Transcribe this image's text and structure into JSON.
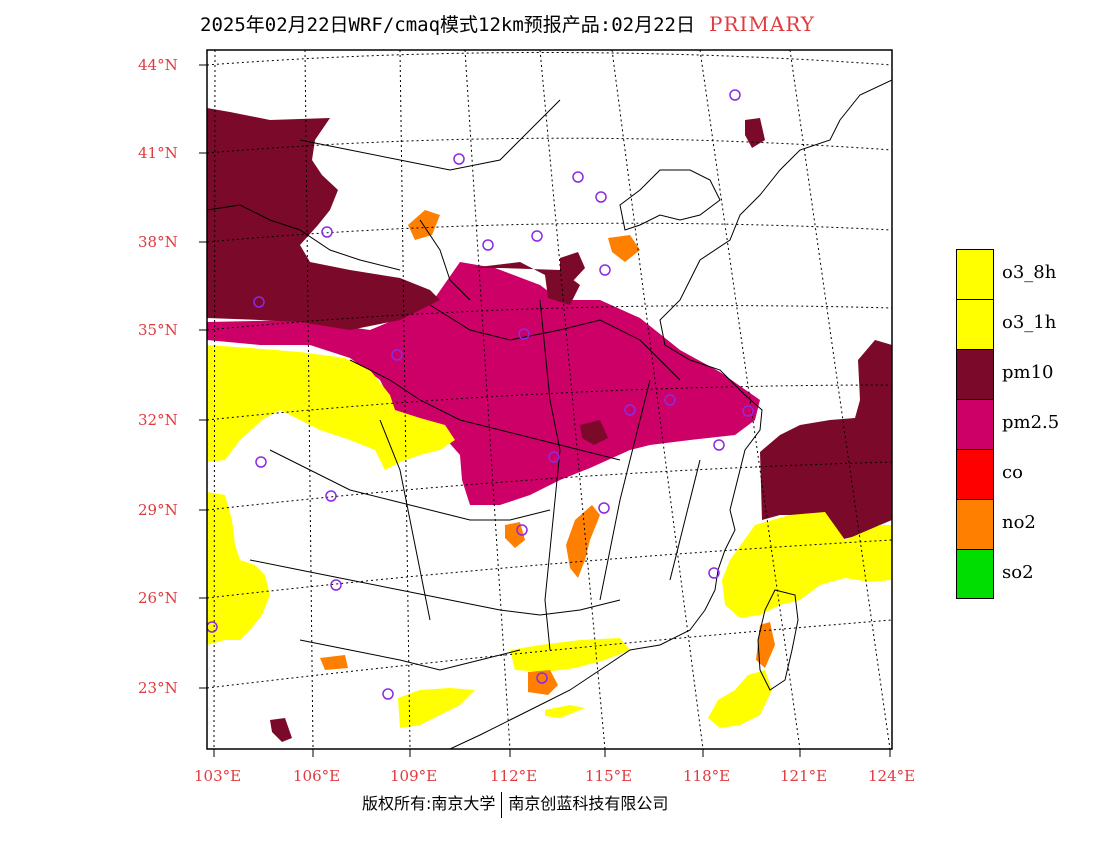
{
  "title": {
    "main": "2025年02月22日WRF/cmaq模式12km预报产品:02月22日",
    "tag": "PRIMARY"
  },
  "colors": {
    "label_red": "#e0393e",
    "o3_8h": "#ffff00",
    "o3_1h": "#ffff00",
    "pm10": "#7b0a2a",
    "pm25": "#cc0066",
    "co": "#ff0000",
    "no2": "#ff7f00",
    "so2": "#00dd00",
    "site_marker": "#8a2be2"
  },
  "axes": {
    "lat_labels": [
      "44°N",
      "41°N",
      "38°N",
      "35°N",
      "32°N",
      "29°N",
      "26°N",
      "23°N"
    ],
    "lon_labels": [
      "103°E",
      "106°E",
      "109°E",
      "112°E",
      "115°E",
      "118°E",
      "121°E",
      "124°E"
    ]
  },
  "legend": {
    "items": [
      {
        "label": "o3_8h",
        "color": "#ffff00"
      },
      {
        "label": "o3_1h",
        "color": "#ffff00"
      },
      {
        "label": "pm10",
        "color": "#7b0a2a"
      },
      {
        "label": "pm2.5",
        "color": "#cc0066"
      },
      {
        "label": "co",
        "color": "#ff0000"
      },
      {
        "label": "no2",
        "color": "#ff7f00"
      },
      {
        "label": "so2",
        "color": "#00dd00"
      }
    ]
  },
  "footer": {
    "left": "版权所有:南京大学",
    "right": "南京创蓝科技有限公司"
  }
}
